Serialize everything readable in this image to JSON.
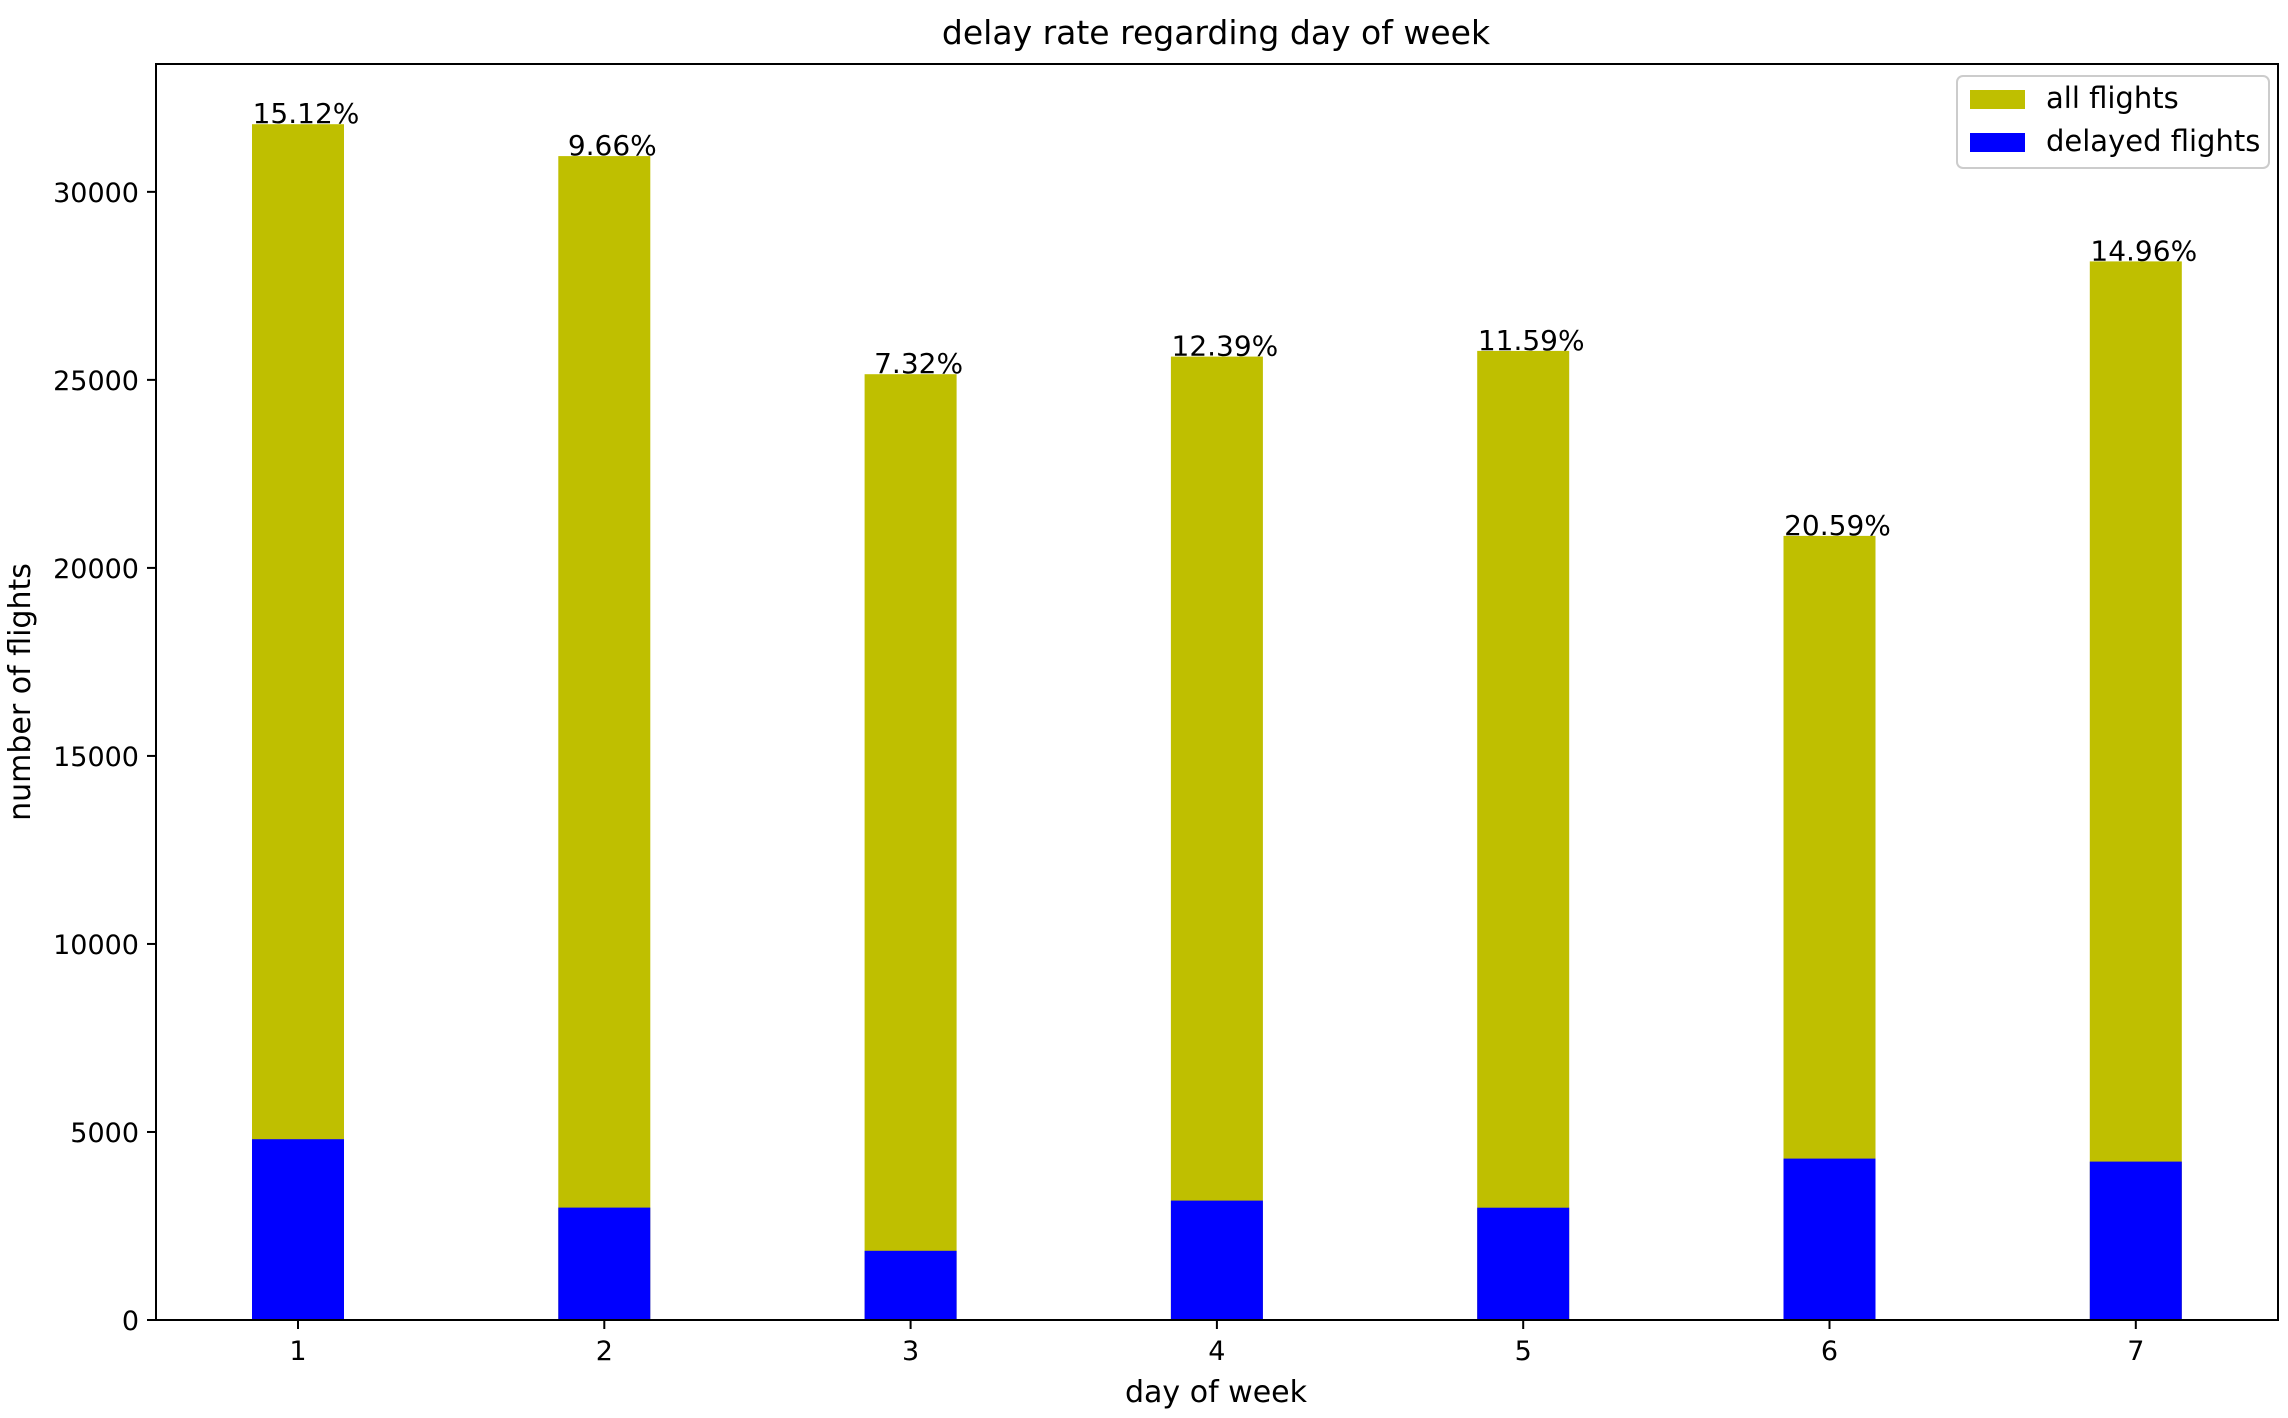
{
  "chart_data": {
    "type": "bar",
    "title": "delay rate regarding day of week",
    "xlabel": "day of week",
    "ylabel": "number of flights",
    "categories": [
      "1",
      "2",
      "3",
      "4",
      "5",
      "6",
      "7"
    ],
    "series": [
      {
        "name": "all flights",
        "color": "#bfbf00",
        "values": [
          31800,
          30950,
          25150,
          25620,
          25770,
          20850,
          28150
        ]
      },
      {
        "name": "delayed flights",
        "color": "#0000ff",
        "values": [
          4808,
          2990,
          1841,
          3174,
          2987,
          4293,
          4211
        ]
      }
    ],
    "data_labels": [
      "15.12%",
      "9.66%",
      "7.32%",
      "12.39%",
      "11.59%",
      "20.59%",
      "14.96%"
    ],
    "ylim": [
      0,
      33400
    ],
    "yticks": [
      0,
      5000,
      10000,
      15000,
      20000,
      25000,
      30000
    ],
    "ytick_labels": [
      "0",
      "5000",
      "10000",
      "15000",
      "20000",
      "25000",
      "30000"
    ],
    "grid": false,
    "legend_position": "top-right"
  }
}
